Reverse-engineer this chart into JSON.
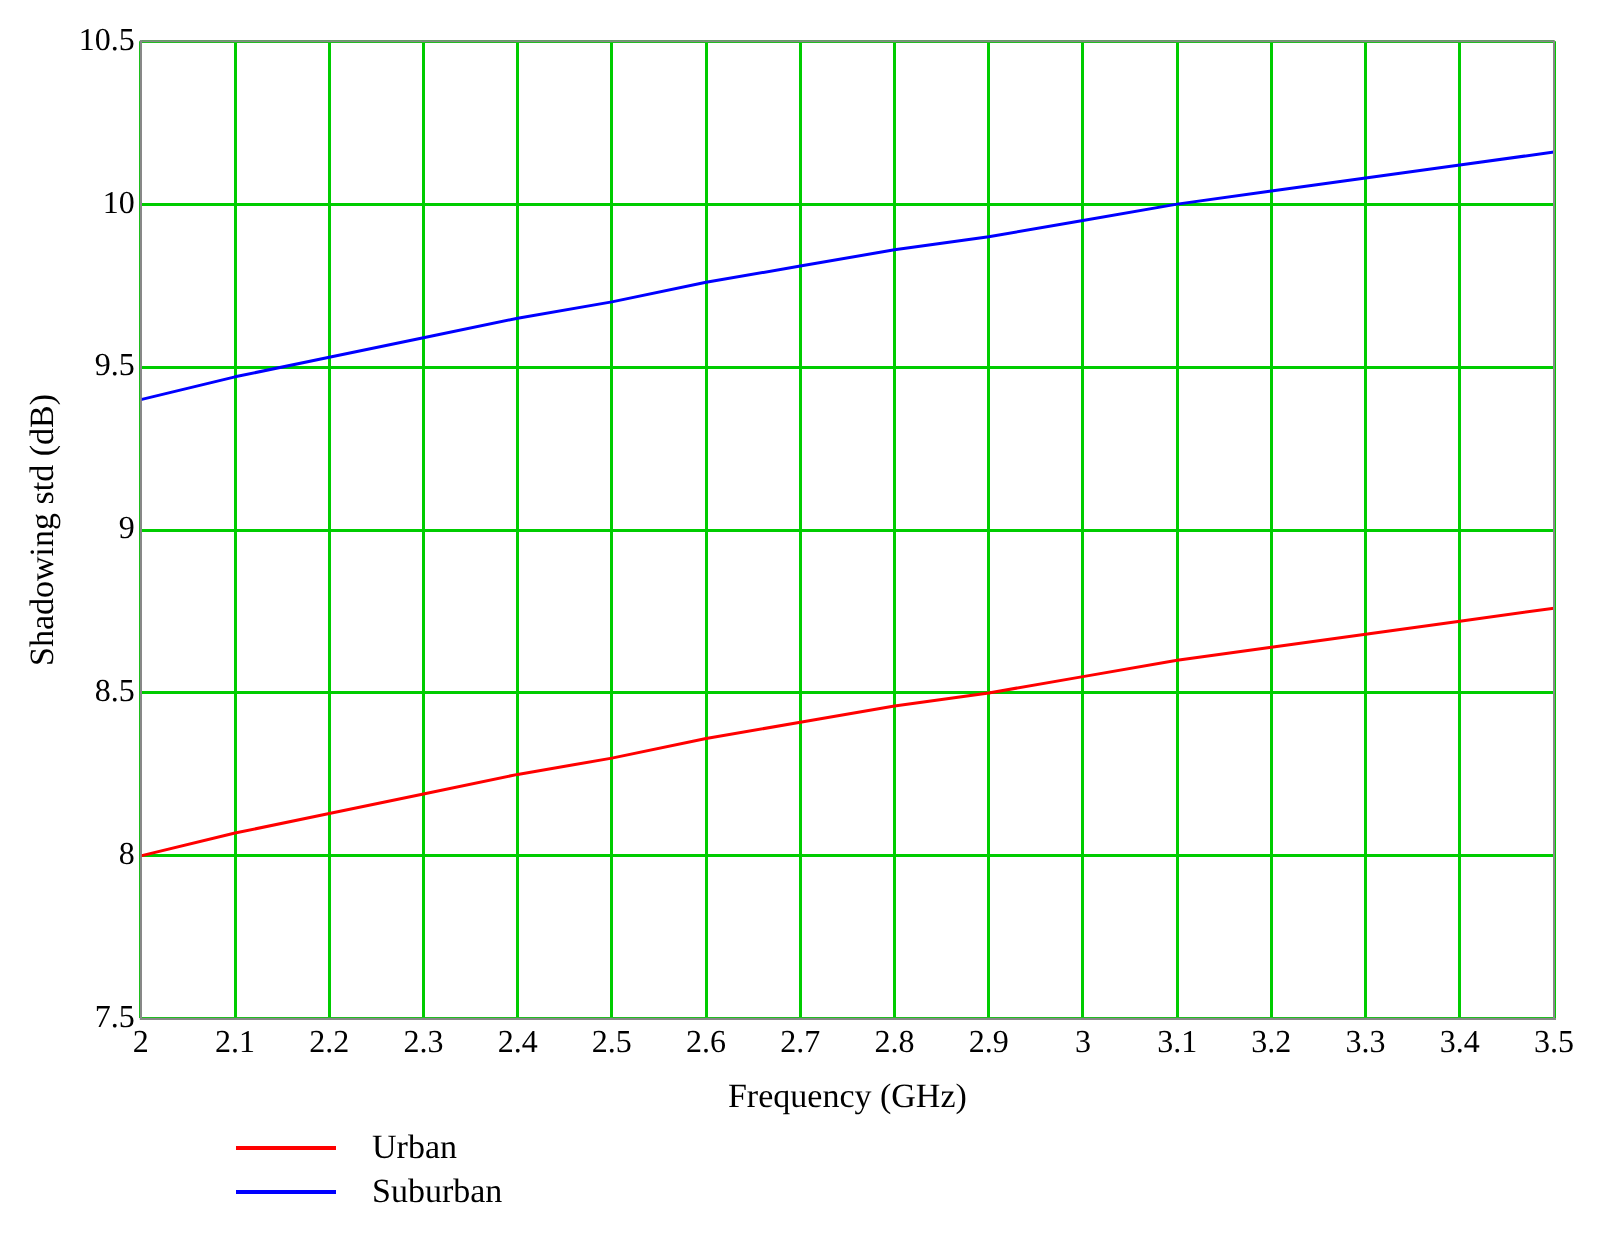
{
  "chart_data": {
    "type": "line",
    "xlabel": "Frequency (GHz)",
    "ylabel": "Shadowing std (dB)",
    "x": [
      2,
      2.1,
      2.2,
      2.3,
      2.4,
      2.5,
      2.6,
      2.7,
      2.8,
      2.9,
      3,
      3.1,
      3.2,
      3.3,
      3.4,
      3.5
    ],
    "series": [
      {
        "name": "Urban",
        "color": "#ff0000",
        "values": [
          8.0,
          8.07,
          8.13,
          8.19,
          8.25,
          8.3,
          8.36,
          8.41,
          8.46,
          8.5,
          8.55,
          8.6,
          8.64,
          8.68,
          8.72,
          8.76
        ]
      },
      {
        "name": "Suburban",
        "color": "#0000ff",
        "values": [
          9.4,
          9.47,
          9.53,
          9.59,
          9.65,
          9.7,
          9.76,
          9.81,
          9.86,
          9.9,
          9.95,
          10.0,
          10.04,
          10.08,
          10.12,
          10.16
        ]
      }
    ],
    "xlim": [
      2,
      3.5
    ],
    "xticks": [
      2,
      2.1,
      2.2,
      2.3,
      2.4,
      2.5,
      2.6,
      2.7,
      2.8,
      2.9,
      3,
      3.1,
      3.2,
      3.3,
      3.4,
      3.5
    ],
    "ylim": [
      7.5,
      10.5
    ],
    "yticks": [
      7.5,
      8,
      8.5,
      9,
      9.5,
      10,
      10.5
    ],
    "grid": true,
    "legend": "bottom left",
    "marker": "none",
    "line_style": "solid"
  }
}
